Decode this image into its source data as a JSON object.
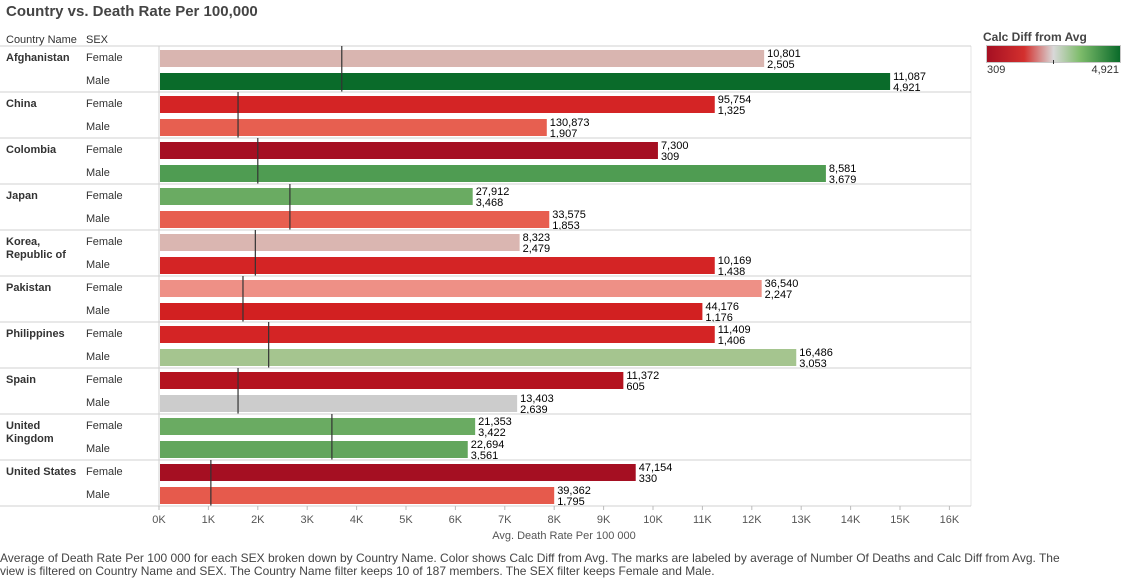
{
  "title": "Country vs. Death Rate Per 100,000",
  "headers": {
    "country": "Country Name",
    "sex": "SEX"
  },
  "legend": {
    "title": "Calc Diff from Avg",
    "min": "309",
    "max": "4,921"
  },
  "caption": "Average of Death Rate Per 100 000 for each SEX broken down by Country Name.  Color shows Calc Diff from Avg.  The marks are labeled by average of Number Of Deaths and Calc Diff from Avg. The view is filtered on Country Name and SEX. The Country Name filter keeps 10 of 187 members. The SEX filter keeps Female and Male.",
  "chart_data": {
    "type": "bar",
    "orientation": "horizontal",
    "title": "Country vs. Death Rate Per 100,000",
    "xlabel": "Avg. Death Rate Per 100 000",
    "xlim": [
      0,
      16000
    ],
    "x_ticks": [
      "0K",
      "1K",
      "2K",
      "3K",
      "4K",
      "5K",
      "6K",
      "7K",
      "8K",
      "9K",
      "10K",
      "11K",
      "12K",
      "13K",
      "14K",
      "15K",
      "16K"
    ],
    "color_legend": "Calc Diff from Avg",
    "color_scale": [
      "#a50f22",
      "#d3302e",
      "#d8d8d8",
      "#7ebc6b",
      "#0a6b2a"
    ],
    "groups": [
      {
        "country": [
          "Afghanistan"
        ],
        "ref": 3700,
        "bars": [
          {
            "sex": "Female",
            "value": 12250,
            "deaths": "10,801",
            "diff": "2,505",
            "color": "#d9b5b0"
          },
          {
            "sex": "Male",
            "value": 14800,
            "deaths": "11,087",
            "diff": "4,921",
            "color": "#0a6b2a"
          }
        ]
      },
      {
        "country": [
          "China"
        ],
        "ref": 1600,
        "bars": [
          {
            "sex": "Female",
            "value": 11250,
            "deaths": "95,754",
            "diff": "1,325",
            "color": "#d42425"
          },
          {
            "sex": "Male",
            "value": 7850,
            "deaths": "130,873",
            "diff": "1,907",
            "color": "#e75f50"
          }
        ]
      },
      {
        "country": [
          "Colombia"
        ],
        "ref": 2000,
        "bars": [
          {
            "sex": "Female",
            "value": 10100,
            "deaths": "7,300",
            "diff": "309",
            "color": "#a50f22"
          },
          {
            "sex": "Male",
            "value": 13500,
            "deaths": "8,581",
            "diff": "3,679",
            "color": "#4f9c52"
          }
        ]
      },
      {
        "country": [
          "Japan"
        ],
        "ref": 2650,
        "bars": [
          {
            "sex": "Female",
            "value": 6350,
            "deaths": "27,912",
            "diff": "3,468",
            "color": "#6aab62"
          },
          {
            "sex": "Male",
            "value": 7900,
            "deaths": "33,575",
            "diff": "1,853",
            "color": "#e75e4f"
          }
        ]
      },
      {
        "country": [
          "Korea,",
          "Republic of"
        ],
        "ref": 1950,
        "bars": [
          {
            "sex": "Female",
            "value": 7300,
            "deaths": "8,323",
            "diff": "2,479",
            "color": "#dab6b1"
          },
          {
            "sex": "Male",
            "value": 11250,
            "deaths": "10,169",
            "diff": "1,438",
            "color": "#d42425"
          }
        ]
      },
      {
        "country": [
          "Pakistan"
        ],
        "ref": 1700,
        "bars": [
          {
            "sex": "Female",
            "value": 12200,
            "deaths": "36,540",
            "diff": "2,247",
            "color": "#ee9086"
          },
          {
            "sex": "Male",
            "value": 11000,
            "deaths": "44,176",
            "diff": "1,176",
            "color": "#d22021"
          }
        ]
      },
      {
        "country": [
          "Philippines"
        ],
        "ref": 2220,
        "bars": [
          {
            "sex": "Female",
            "value": 11250,
            "deaths": "11,409",
            "diff": "1,406",
            "color": "#d42425"
          },
          {
            "sex": "Male",
            "value": 12900,
            "deaths": "16,486",
            "diff": "3,053",
            "color": "#a5c58f"
          }
        ]
      },
      {
        "country": [
          "Spain"
        ],
        "ref": 1600,
        "bars": [
          {
            "sex": "Female",
            "value": 9400,
            "deaths": "11,372",
            "diff": "605",
            "color": "#b4131f"
          },
          {
            "sex": "Male",
            "value": 7250,
            "deaths": "13,403",
            "diff": "2,639",
            "color": "#cccccc"
          }
        ]
      },
      {
        "country": [
          "United",
          "Kingdom"
        ],
        "ref": 3500,
        "bars": [
          {
            "sex": "Female",
            "value": 6400,
            "deaths": "21,353",
            "diff": "3,422",
            "color": "#6aab62"
          },
          {
            "sex": "Male",
            "value": 6250,
            "deaths": "22,694",
            "diff": "3,561",
            "color": "#63a65d"
          }
        ]
      },
      {
        "country": [
          "United States"
        ],
        "ref": 1050,
        "bars": [
          {
            "sex": "Female",
            "value": 9650,
            "deaths": "47,154",
            "diff": "330",
            "color": "#a50f22"
          },
          {
            "sex": "Male",
            "value": 8000,
            "deaths": "39,362",
            "diff": "1,795",
            "color": "#e65a4c"
          }
        ]
      }
    ]
  }
}
